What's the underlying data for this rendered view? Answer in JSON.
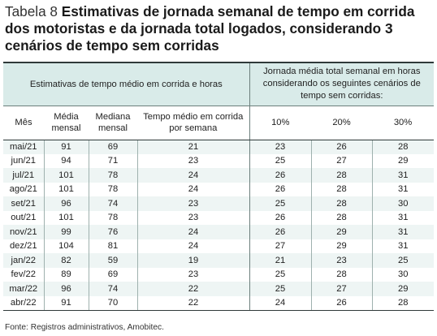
{
  "title": {
    "prefix": "Tabela 8",
    "text": "Estimativas de jornada semanal de tempo em corrida dos motoristas e da jornada total logados, considerando 3 cenários de tempo sem corridas"
  },
  "table": {
    "group_left": "Estimativas de tempo médio em corrida e horas",
    "group_right": "Jornada média total semanal em horas considerando os seguintes cenários de tempo sem corridas:",
    "headers": {
      "mes": "Mês",
      "media": "Média mensal",
      "mediana": "Mediana mensal",
      "tempo": "Tempo médio em corrida por semana",
      "p10": "10%",
      "p20": "20%",
      "p30": "30%"
    },
    "rows": [
      [
        "mai/21",
        "91",
        "69",
        "21",
        "23",
        "26",
        "28"
      ],
      [
        "jun/21",
        "94",
        "71",
        "23",
        "25",
        "27",
        "29"
      ],
      [
        "jul/21",
        "101",
        "78",
        "24",
        "26",
        "28",
        "31"
      ],
      [
        "ago/21",
        "101",
        "78",
        "24",
        "26",
        "28",
        "31"
      ],
      [
        "set/21",
        "96",
        "74",
        "23",
        "25",
        "28",
        "30"
      ],
      [
        "out/21",
        "101",
        "78",
        "23",
        "26",
        "28",
        "31"
      ],
      [
        "nov/21",
        "99",
        "76",
        "24",
        "26",
        "29",
        "31"
      ],
      [
        "dez/21",
        "104",
        "81",
        "24",
        "27",
        "29",
        "31"
      ],
      [
        "jan/22",
        "82",
        "59",
        "19",
        "21",
        "23",
        "25"
      ],
      [
        "fev/22",
        "89",
        "69",
        "23",
        "25",
        "28",
        "30"
      ],
      [
        "mar/22",
        "96",
        "74",
        "22",
        "25",
        "27",
        "29"
      ],
      [
        "abr/22",
        "91",
        "70",
        "22",
        "24",
        "26",
        "28"
      ]
    ]
  },
  "source": "Fonte: Registros administrativos, Amobitec."
}
